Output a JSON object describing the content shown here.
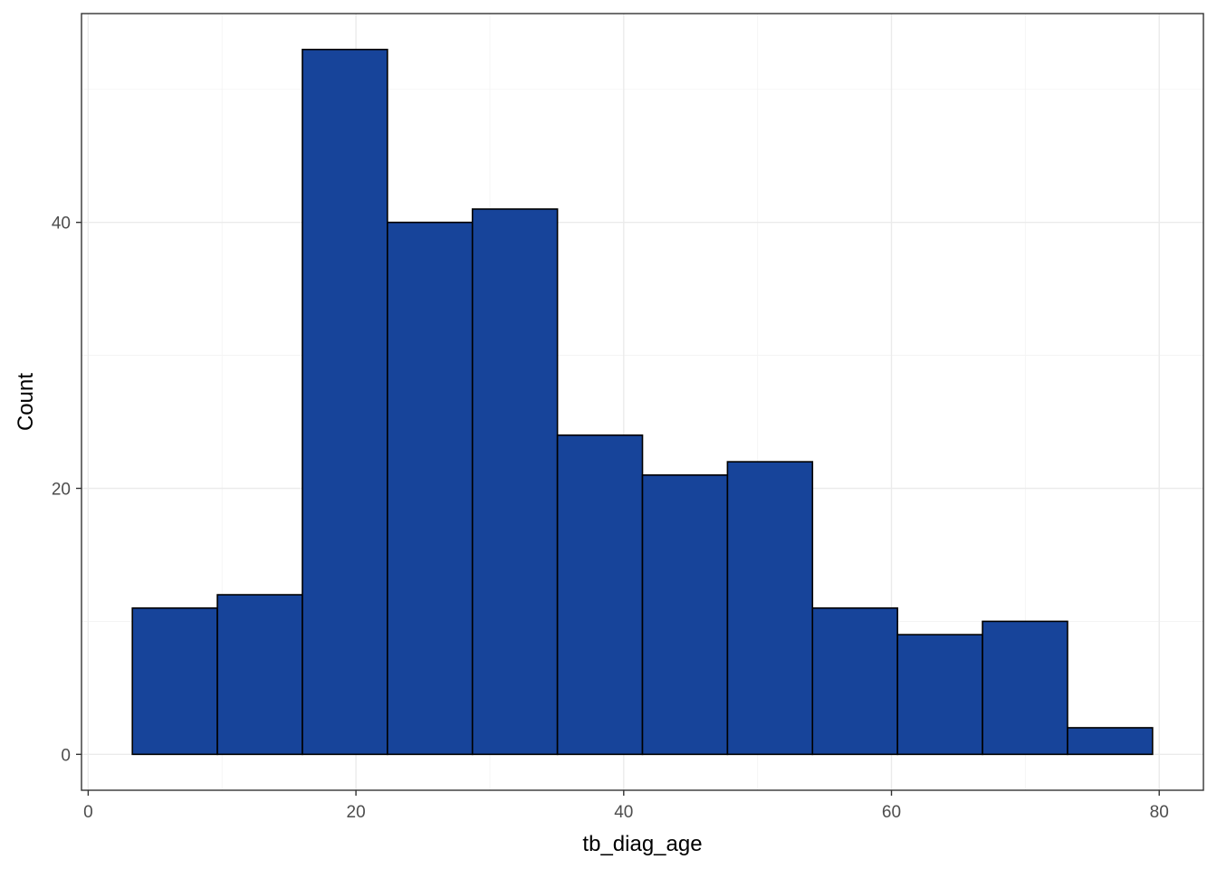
{
  "chart_data": {
    "type": "bar",
    "subtype": "histogram",
    "title": "",
    "xlabel": "tb_diag_age",
    "ylabel": "Count",
    "xlim": [
      -0.5,
      83.3
    ],
    "ylim": [
      -2.7,
      55.7
    ],
    "x_ticks": [
      0,
      20,
      40,
      60,
      80
    ],
    "y_ticks": [
      0,
      20,
      40
    ],
    "x_tick_labels": [
      "0",
      "20",
      "40",
      "60",
      "80"
    ],
    "y_tick_labels": [
      "0",
      "20",
      "40"
    ],
    "grid": true,
    "legend": "none",
    "fill_color": "#17449A",
    "edge_color": "#000000",
    "bins": [
      {
        "x0": 3.3,
        "x1": 9.65,
        "count": 11
      },
      {
        "x0": 9.65,
        "x1": 16.0,
        "count": 12
      },
      {
        "x0": 16.0,
        "x1": 22.35,
        "count": 53
      },
      {
        "x0": 22.35,
        "x1": 28.7,
        "count": 40
      },
      {
        "x0": 28.7,
        "x1": 35.05,
        "count": 41
      },
      {
        "x0": 35.05,
        "x1": 41.4,
        "count": 24
      },
      {
        "x0": 41.4,
        "x1": 47.75,
        "count": 21
      },
      {
        "x0": 47.75,
        "x1": 54.1,
        "count": 22
      },
      {
        "x0": 54.1,
        "x1": 60.45,
        "count": 11
      },
      {
        "x0": 60.45,
        "x1": 66.8,
        "count": 9
      },
      {
        "x0": 66.8,
        "x1": 73.15,
        "count": 10
      },
      {
        "x0": 73.15,
        "x1": 79.5,
        "count": 2
      }
    ]
  }
}
